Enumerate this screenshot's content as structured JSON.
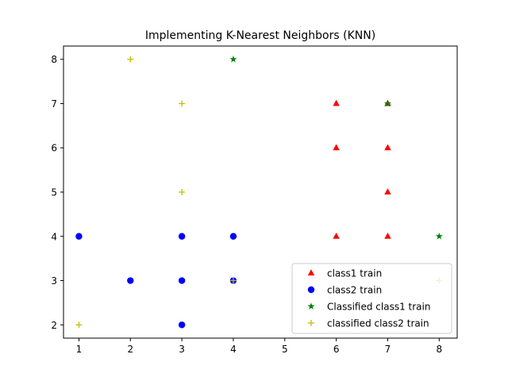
{
  "chart_data": {
    "type": "scatter",
    "title": "Implementing K-Nearest Neighbors (KNN)",
    "xlabel": "",
    "ylabel": "",
    "xlim": [
      0.7,
      8.35
    ],
    "ylim": [
      1.7,
      8.3
    ],
    "x_ticks": [
      1,
      2,
      3,
      4,
      5,
      6,
      7,
      8
    ],
    "y_ticks": [
      2,
      3,
      4,
      5,
      6,
      7,
      8
    ],
    "grid": false,
    "legend_position": "lower-right",
    "series": [
      {
        "name": "class1 train",
        "marker": "triangle",
        "color": "#ff0000",
        "points": [
          [
            6,
            7
          ],
          [
            7,
            7
          ],
          [
            6,
            6
          ],
          [
            7,
            6
          ],
          [
            7,
            5
          ],
          [
            6,
            4
          ],
          [
            7,
            4
          ]
        ]
      },
      {
        "name": "class2 train",
        "marker": "circle",
        "color": "#0000ff",
        "points": [
          [
            1,
            4
          ],
          [
            3,
            4
          ],
          [
            4,
            4
          ],
          [
            2,
            3
          ],
          [
            3,
            3
          ],
          [
            4,
            3
          ],
          [
            3,
            2
          ]
        ]
      },
      {
        "name": "Classified class1 train",
        "marker": "star",
        "color": "#008000",
        "points": [
          [
            4,
            8
          ],
          [
            7,
            7
          ],
          [
            8,
            4
          ]
        ]
      },
      {
        "name": "classified class2 train",
        "marker": "plus",
        "color": "#bfbf00",
        "points": [
          [
            2,
            8
          ],
          [
            3,
            7
          ],
          [
            3,
            5
          ],
          [
            1,
            2
          ],
          [
            4,
            3
          ],
          [
            8,
            3
          ]
        ]
      }
    ]
  }
}
